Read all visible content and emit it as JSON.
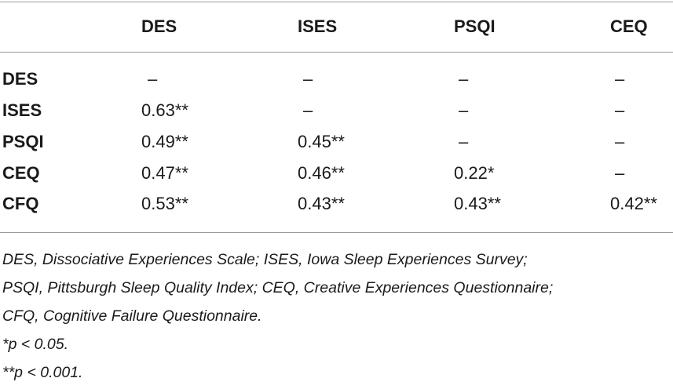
{
  "table": {
    "columns": [
      "DES",
      "ISES",
      "PSQI",
      "CEQ"
    ],
    "rows": [
      {
        "label": "DES",
        "cells": [
          "–",
          "–",
          "–",
          "–"
        ]
      },
      {
        "label": "ISES",
        "cells": [
          "0.63**",
          "–",
          "–",
          "–"
        ]
      },
      {
        "label": "PSQI",
        "cells": [
          "0.49**",
          "0.45**",
          "–",
          "–"
        ]
      },
      {
        "label": "CEQ",
        "cells": [
          "0.47**",
          "0.46**",
          "0.22*",
          "–"
        ]
      },
      {
        "label": "CFQ",
        "cells": [
          "0.53**",
          "0.43**",
          "0.43**",
          "0.42**"
        ]
      }
    ]
  },
  "notes": {
    "abbrev_line1": "DES, Dissociative Experiences Scale; ISES, Iowa Sleep Experiences Survey;",
    "abbrev_line2": "PSQI, Pittsburgh Sleep Quality Index; CEQ, Creative Experiences Questionnaire;",
    "abbrev_line3": "CFQ, Cognitive Failure Questionnaire.",
    "sig1": "*p < 0.05.",
    "sig2": "**p < 0.001."
  }
}
